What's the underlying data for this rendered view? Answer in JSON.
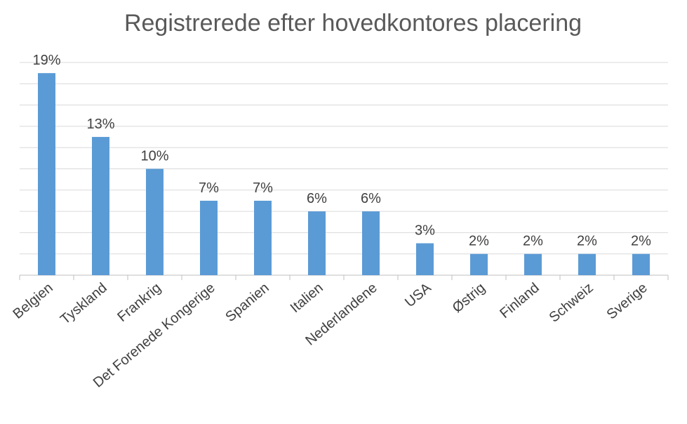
{
  "chart_data": {
    "type": "bar",
    "title": "Registrerede efter hovedkontores placering",
    "categories": [
      "Belgien",
      "Tyskland",
      "Frankrig",
      "Det Forenede Kongerige",
      "Spanien",
      "Italien",
      "Nederlandene",
      "USA",
      "Østrig",
      "Finland",
      "Schweiz",
      "Sverige"
    ],
    "values": [
      19,
      13,
      10,
      7,
      7,
      6,
      6,
      3,
      2,
      2,
      2,
      2
    ],
    "value_labels": [
      "19%",
      "13%",
      "10%",
      "7%",
      "7%",
      "6%",
      "6%",
      "3%",
      "2%",
      "2%",
      "2%",
      "2%"
    ],
    "color": "#5b9bd5",
    "ylim": [
      0,
      20
    ],
    "yticks": [
      0,
      2,
      4,
      6,
      8,
      10,
      12,
      14,
      16,
      18,
      20
    ],
    "grid": true
  }
}
